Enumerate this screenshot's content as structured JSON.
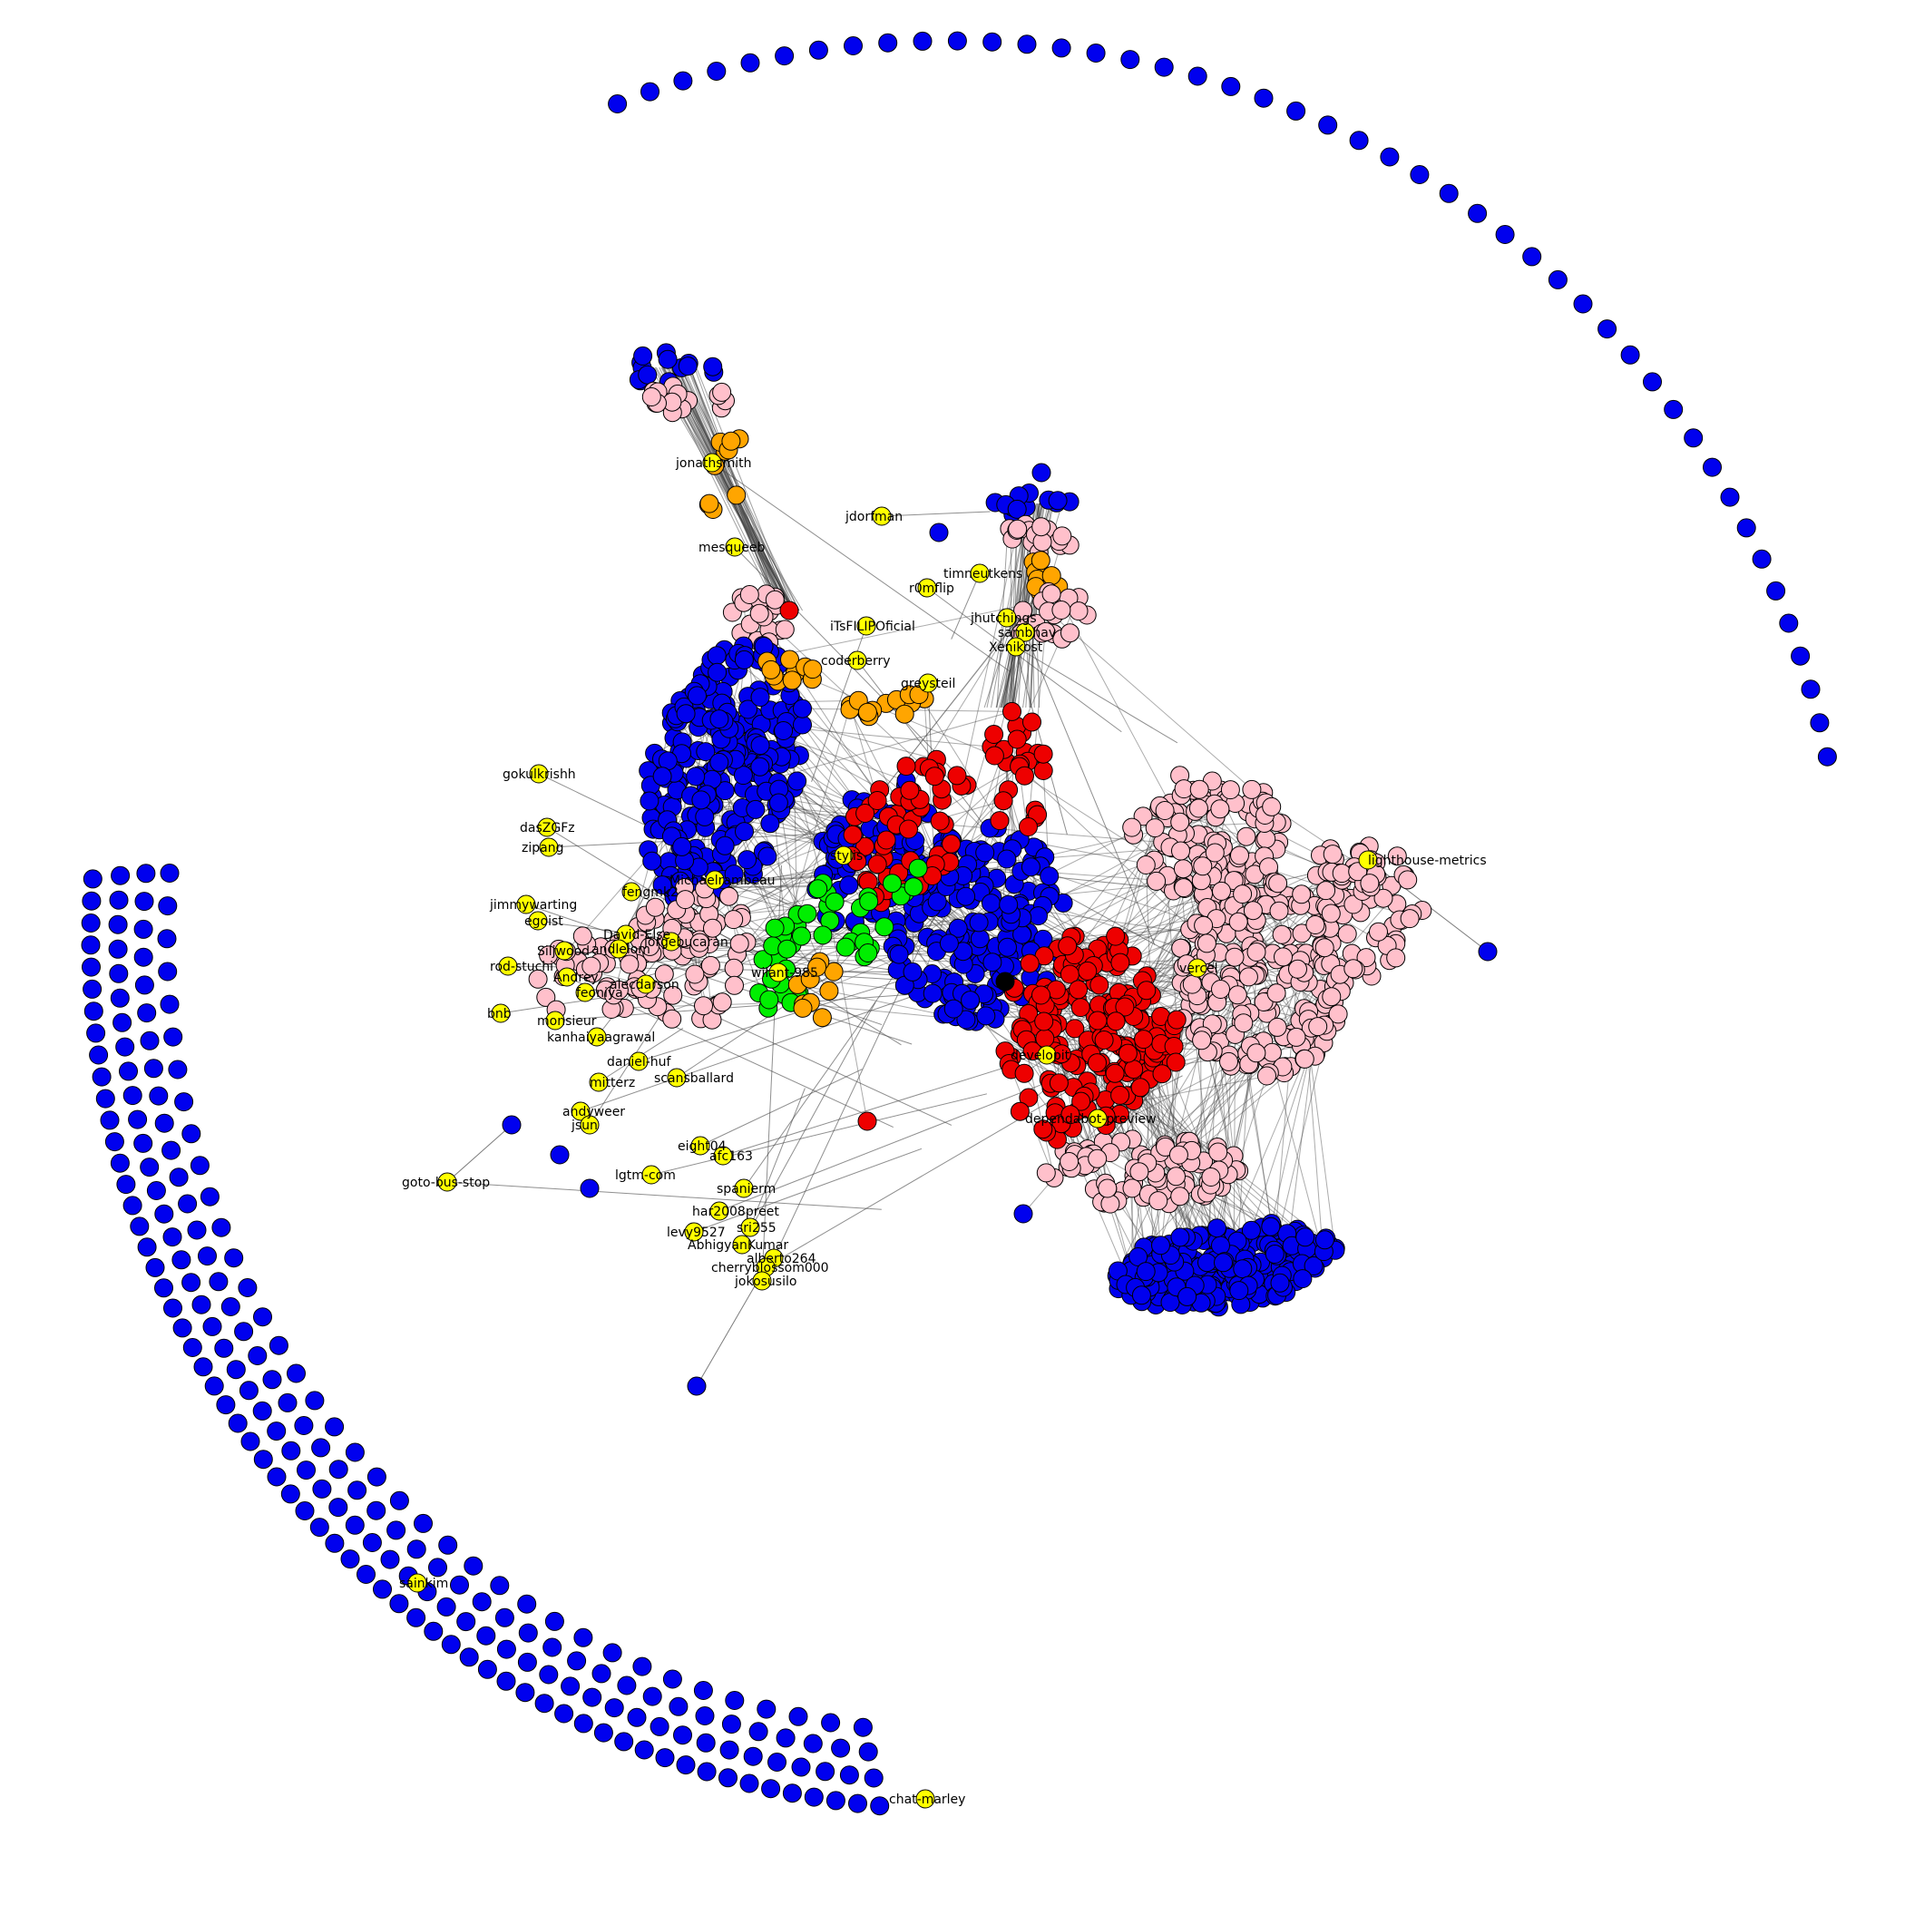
{
  "colors": {
    "background": "#ffffff",
    "edge": "#444444",
    "node_stroke": "#000000",
    "blue": "#0000ee",
    "pink": "#ffc0cb",
    "red": "#ee0000",
    "orange": "#ffa500",
    "green": "#00ee00",
    "yellow": "#ffff00",
    "black": "#000000"
  },
  "labels": [
    "jonathsmith",
    "mesqueeb",
    "jdorfman",
    "iTsFILIPOficial",
    "coderberry",
    "r0mflip",
    "timneutkens",
    "jhutchings",
    "sambhav",
    "Xenikost",
    "greysteil",
    "gokulkrishh",
    "dasZGFz",
    "zipang",
    "lighthouse-metrics",
    "jimmywarting",
    "egoist",
    "fengmk2",
    "Michaelrambeau",
    "stylis",
    "David-Else",
    "Siljwood",
    "andlelom",
    "jorgebucaran",
    "rod-stuchi",
    "Andrey",
    "feoniya",
    "alecdarson",
    "bnb",
    "monsieur",
    "kanhaiyaagrawal",
    "daniel-huf",
    "mitterz",
    "scansballard",
    "andyweer",
    "jsun",
    "goto-bus-stop",
    "eight04",
    "afc163",
    "lgtm-com",
    "spanierm",
    "har2008preet",
    "levy9527",
    "sri255",
    "AbhigyanKumar",
    "alberto264",
    "cherryblossom000",
    "jokosusilo",
    "vercel",
    "developit",
    "dependabot-preview",
    "sainkim",
    "chat-marley",
    "wilant-985"
  ]
}
